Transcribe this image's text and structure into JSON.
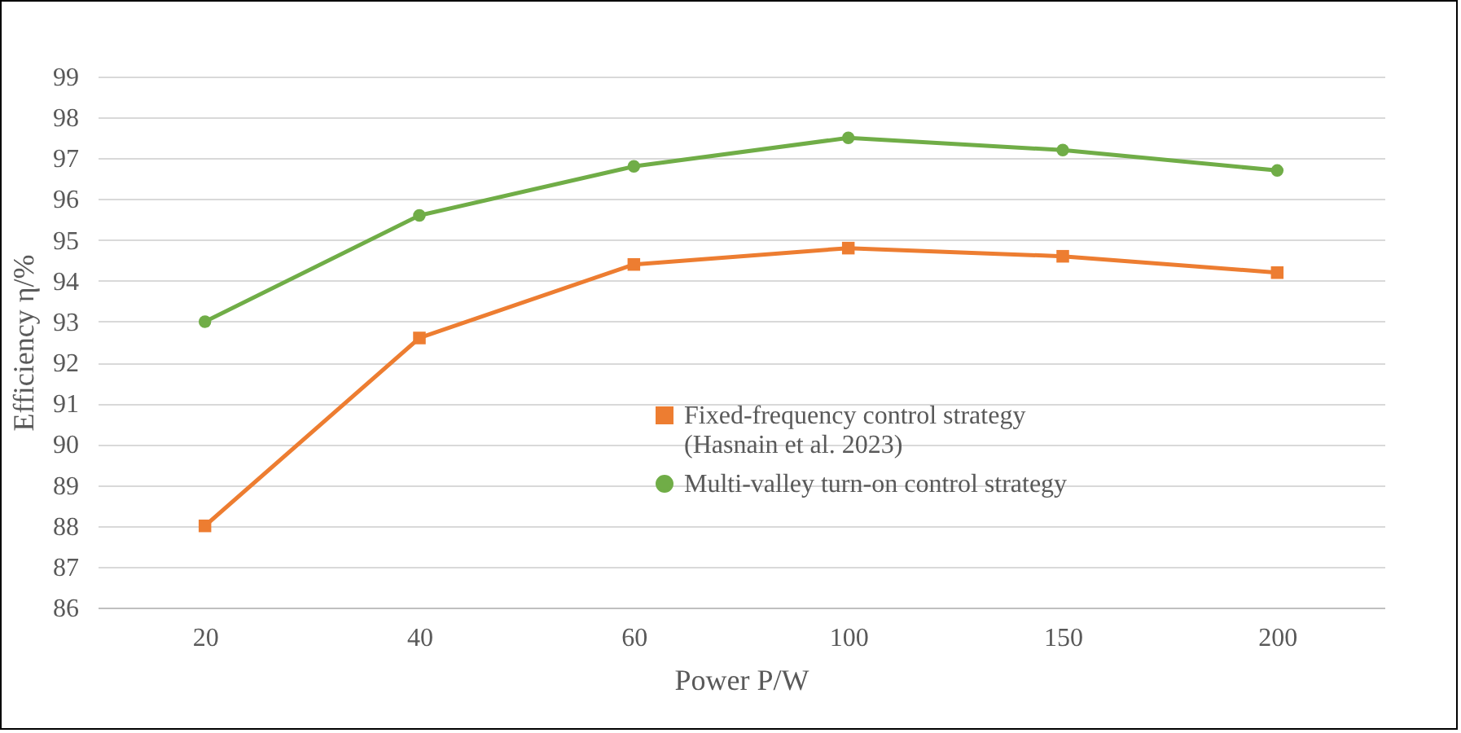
{
  "chart_data": {
    "type": "line",
    "xlabel": "Power P/W",
    "ylabel": "Efficiency η/%",
    "categories": [
      "20",
      "40",
      "60",
      "100",
      "150",
      "200"
    ],
    "series": [
      {
        "name": "Fixed-frequency control strategy\n(Hasnain et al. 2023)",
        "color": "#ed7d31",
        "marker": "square",
        "values": [
          88.0,
          92.6,
          94.4,
          94.8,
          94.6,
          94.2
        ]
      },
      {
        "name": "Multi-valley turn-on control strategy",
        "color": "#70ad47",
        "marker": "circle",
        "values": [
          93.0,
          95.6,
          96.8,
          97.5,
          97.2,
          96.7
        ]
      }
    ],
    "ylim": [
      86,
      99
    ],
    "yticks": [
      86,
      87,
      88,
      89,
      90,
      91,
      92,
      93,
      94,
      95,
      96,
      97,
      98,
      99
    ],
    "grid": "y",
    "legend": "right",
    "line_style": "solid"
  }
}
